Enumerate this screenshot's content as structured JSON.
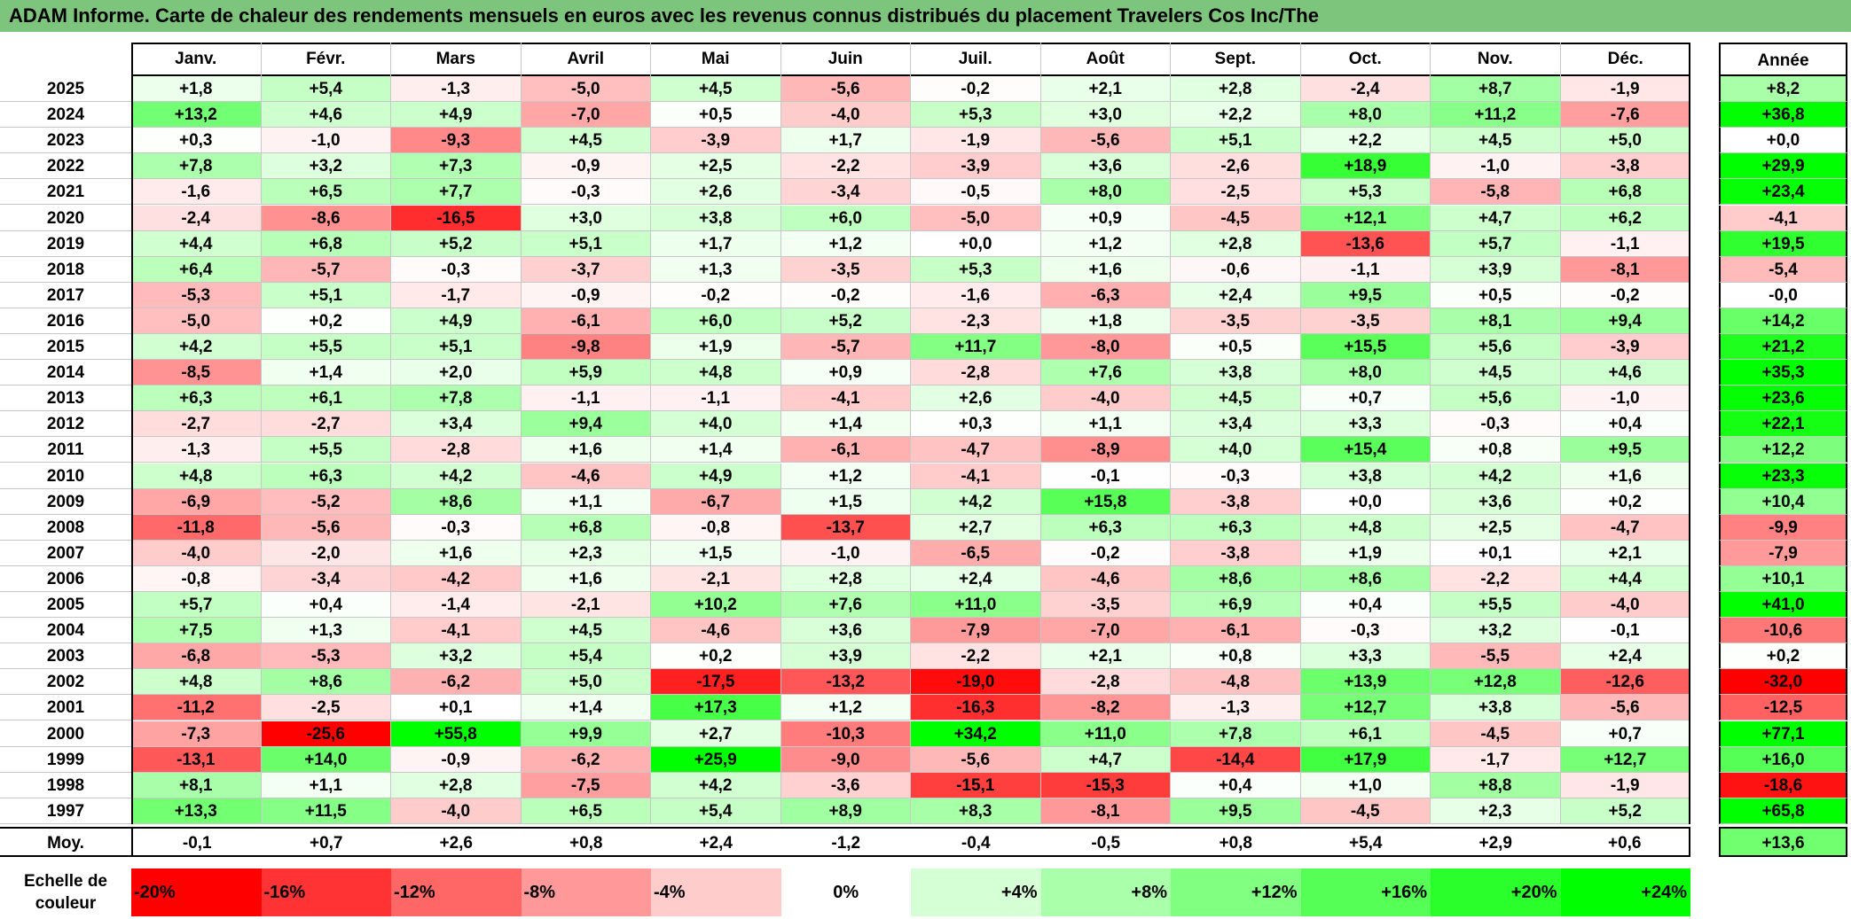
{
  "title": "ADAM Informe. Carte de chaleur des rendements mensuels en euros avec les revenus connus distribués du placement Travelers Cos Inc/The",
  "chart_data": {
    "type": "heatmap",
    "months": [
      "Janv.",
      "Févr.",
      "Mars",
      "Avril",
      "Mai",
      "Juin",
      "Juil.",
      "Août",
      "Sept.",
      "Oct.",
      "Nov.",
      "Déc."
    ],
    "annual_header": "Année",
    "rows": [
      {
        "year": "2025",
        "values": [
          "+1,8",
          "+5,4",
          "-1,3",
          "-5,0",
          "+4,5",
          "-5,6",
          "-0,2",
          "+2,1",
          "+2,8",
          "-2,4",
          "+8,7",
          "-1,9"
        ],
        "annual": "+8,2"
      },
      {
        "year": "2024",
        "values": [
          "+13,2",
          "+4,6",
          "+4,9",
          "-7,0",
          "+0,5",
          "-4,0",
          "+5,3",
          "+3,0",
          "+2,2",
          "+8,0",
          "+11,2",
          "-7,6"
        ],
        "annual": "+36,8"
      },
      {
        "year": "2023",
        "values": [
          "+0,3",
          "-1,0",
          "-9,3",
          "+4,5",
          "-3,9",
          "+1,7",
          "-1,9",
          "-5,6",
          "+5,1",
          "+2,2",
          "+4,5",
          "+5,0"
        ],
        "annual": "+0,0"
      },
      {
        "year": "2022",
        "values": [
          "+7,8",
          "+3,2",
          "+7,3",
          "-0,9",
          "+2,5",
          "-2,2",
          "-3,9",
          "+3,6",
          "-2,6",
          "+18,9",
          "-1,0",
          "-3,8"
        ],
        "annual": "+29,9"
      },
      {
        "year": "2021",
        "values": [
          "-1,6",
          "+6,5",
          "+7,7",
          "-0,3",
          "+2,6",
          "-3,4",
          "-0,5",
          "+8,0",
          "-2,5",
          "+5,3",
          "-5,8",
          "+6,8"
        ],
        "annual": "+23,4"
      },
      {
        "year": "2020",
        "values": [
          "-2,4",
          "-8,6",
          "-16,5",
          "+3,0",
          "+3,8",
          "+6,0",
          "-5,0",
          "+0,9",
          "-4,5",
          "+12,1",
          "+4,7",
          "+6,2"
        ],
        "annual": "-4,1"
      },
      {
        "year": "2019",
        "values": [
          "+4,4",
          "+6,8",
          "+5,2",
          "+5,1",
          "+1,7",
          "+1,2",
          "+0,0",
          "+1,2",
          "+2,8",
          "-13,6",
          "+5,7",
          "-1,1"
        ],
        "annual": "+19,5"
      },
      {
        "year": "2018",
        "values": [
          "+6,4",
          "-5,7",
          "-0,3",
          "-3,7",
          "+1,3",
          "-3,5",
          "+5,3",
          "+1,6",
          "-0,6",
          "-1,1",
          "+3,9",
          "-8,1"
        ],
        "annual": "-5,4"
      },
      {
        "year": "2017",
        "values": [
          "-5,3",
          "+5,1",
          "-1,7",
          "-0,9",
          "-0,2",
          "-0,2",
          "-1,6",
          "-6,3",
          "+2,4",
          "+9,5",
          "+0,5",
          "-0,2"
        ],
        "annual": "-0,0"
      },
      {
        "year": "2016",
        "values": [
          "-5,0",
          "+0,2",
          "+4,9",
          "-6,1",
          "+6,0",
          "+5,2",
          "-2,3",
          "+1,8",
          "-3,5",
          "-3,5",
          "+8,1",
          "+9,4"
        ],
        "annual": "+14,2"
      },
      {
        "year": "2015",
        "values": [
          "+4,2",
          "+5,5",
          "+5,1",
          "-9,8",
          "+1,9",
          "-5,7",
          "+11,7",
          "-8,0",
          "+0,5",
          "+15,5",
          "+5,6",
          "-3,9"
        ],
        "annual": "+21,2"
      },
      {
        "year": "2014",
        "values": [
          "-8,5",
          "+1,4",
          "+2,0",
          "+5,9",
          "+4,8",
          "+0,9",
          "-2,8",
          "+7,6",
          "+3,8",
          "+8,0",
          "+4,5",
          "+4,6"
        ],
        "annual": "+35,3"
      },
      {
        "year": "2013",
        "values": [
          "+6,3",
          "+6,1",
          "+7,8",
          "-1,1",
          "-1,1",
          "-4,1",
          "+2,6",
          "-4,0",
          "+4,5",
          "+0,7",
          "+5,6",
          "-1,0"
        ],
        "annual": "+23,6"
      },
      {
        "year": "2012",
        "values": [
          "-2,7",
          "-2,7",
          "+3,4",
          "+9,4",
          "+4,0",
          "+1,4",
          "+0,3",
          "+1,1",
          "+3,4",
          "+3,3",
          "-0,3",
          "+0,4"
        ],
        "annual": "+22,1"
      },
      {
        "year": "2011",
        "values": [
          "-1,3",
          "+5,5",
          "-2,8",
          "+1,6",
          "+1,4",
          "-6,1",
          "-4,7",
          "-8,9",
          "+4,0",
          "+15,4",
          "+0,8",
          "+9,5"
        ],
        "annual": "+12,2"
      },
      {
        "year": "2010",
        "values": [
          "+4,8",
          "+6,3",
          "+4,2",
          "-4,6",
          "+4,9",
          "+1,2",
          "-4,1",
          "-0,1",
          "-0,3",
          "+3,8",
          "+4,2",
          "+1,6"
        ],
        "annual": "+23,3"
      },
      {
        "year": "2009",
        "values": [
          "-6,9",
          "-5,2",
          "+8,6",
          "+1,1",
          "-6,7",
          "+1,5",
          "+4,2",
          "+15,8",
          "-3,8",
          "+0,0",
          "+3,6",
          "+0,2"
        ],
        "annual": "+10,4"
      },
      {
        "year": "2008",
        "values": [
          "-11,8",
          "-5,6",
          "-0,3",
          "+6,8",
          "-0,8",
          "-13,7",
          "+2,7",
          "+6,3",
          "+6,3",
          "+4,8",
          "+2,5",
          "-4,7"
        ],
        "annual": "-9,9"
      },
      {
        "year": "2007",
        "values": [
          "-4,0",
          "-2,0",
          "+1,6",
          "+2,3",
          "+1,5",
          "-1,0",
          "-6,5",
          "-0,2",
          "-3,8",
          "+1,9",
          "+0,1",
          "+2,1"
        ],
        "annual": "-7,9"
      },
      {
        "year": "2006",
        "values": [
          "-0,8",
          "-3,4",
          "-4,2",
          "+1,6",
          "-2,1",
          "+2,8",
          "+2,4",
          "-4,6",
          "+8,6",
          "+8,6",
          "-2,2",
          "+4,4"
        ],
        "annual": "+10,1"
      },
      {
        "year": "2005",
        "values": [
          "+5,7",
          "+0,4",
          "-1,4",
          "-2,1",
          "+10,2",
          "+7,6",
          "+11,0",
          "-3,5",
          "+6,9",
          "+0,4",
          "+5,5",
          "-4,0"
        ],
        "annual": "+41,0"
      },
      {
        "year": "2004",
        "values": [
          "+7,5",
          "+1,3",
          "-4,1",
          "+4,5",
          "-4,6",
          "+3,6",
          "-7,9",
          "-7,0",
          "-6,1",
          "-0,3",
          "+3,2",
          "-0,1"
        ],
        "annual": "-10,6"
      },
      {
        "year": "2003",
        "values": [
          "-6,8",
          "-5,3",
          "+3,2",
          "+5,4",
          "+0,2",
          "+3,9",
          "-2,2",
          "+2,1",
          "+0,8",
          "+3,3",
          "-5,5",
          "+2,4"
        ],
        "annual": "+0,2"
      },
      {
        "year": "2002",
        "values": [
          "+4,8",
          "+8,6",
          "-6,2",
          "+5,0",
          "-17,5",
          "-13,2",
          "-19,0",
          "-2,8",
          "-4,8",
          "+13,9",
          "+12,8",
          "-12,6"
        ],
        "annual": "-32,0"
      },
      {
        "year": "2001",
        "values": [
          "-11,2",
          "-2,5",
          "+0,1",
          "+1,4",
          "+17,3",
          "+1,2",
          "-16,3",
          "-8,2",
          "-1,3",
          "+12,7",
          "+3,8",
          "-5,6"
        ],
        "annual": "-12,5"
      },
      {
        "year": "2000",
        "values": [
          "-7,3",
          "-25,6",
          "+55,8",
          "+9,9",
          "+2,7",
          "-10,3",
          "+34,2",
          "+11,0",
          "+7,8",
          "+6,1",
          "-4,5",
          "+0,7"
        ],
        "annual": "+77,1"
      },
      {
        "year": "1999",
        "values": [
          "-13,1",
          "+14,0",
          "-0,9",
          "-6,2",
          "+25,9",
          "-9,0",
          "-5,6",
          "+4,7",
          "-14,4",
          "+17,9",
          "-1,7",
          "+12,7"
        ],
        "annual": "+16,0"
      },
      {
        "year": "1998",
        "values": [
          "+8,1",
          "+1,1",
          "+2,8",
          "-7,5",
          "+4,2",
          "-3,6",
          "-15,1",
          "-15,3",
          "+0,4",
          "+1,0",
          "+8,8",
          "-1,9"
        ],
        "annual": "-18,6"
      },
      {
        "year": "1997",
        "values": [
          "+13,3",
          "+11,5",
          "-4,0",
          "+6,5",
          "+5,4",
          "+8,9",
          "+8,3",
          "-8,1",
          "+9,5",
          "-4,5",
          "+2,3",
          "+5,2"
        ],
        "annual": "+65,8"
      }
    ],
    "average": {
      "label": "Moy.",
      "values": [
        "-0,1",
        "+0,7",
        "+2,6",
        "+0,8",
        "+2,4",
        "-1,2",
        "-0,4",
        "-0,5",
        "+0,8",
        "+5,4",
        "+2,9",
        "+0,6"
      ],
      "annual": "+13,6"
    },
    "color_scale": {
      "label_line1": "Echelle de",
      "label_line2": "couleur",
      "stops": [
        {
          "label": "-20%",
          "value": -20
        },
        {
          "label": "-16%",
          "value": -16
        },
        {
          "label": "-12%",
          "value": -12
        },
        {
          "label": "-8%",
          "value": -8
        },
        {
          "label": "-4%",
          "value": -4
        },
        {
          "label": "0%",
          "value": 0
        },
        {
          "label": "+4%",
          "value": 4
        },
        {
          "label": "+8%",
          "value": 8
        },
        {
          "label": "+12%",
          "value": 12
        },
        {
          "label": "+16%",
          "value": 16
        },
        {
          "label": "+20%",
          "value": 20
        },
        {
          "label": "+24%",
          "value": 24
        }
      ],
      "negative_color": "#ff0000",
      "neutral_color": "#ffffff",
      "positive_color": "#00ff00"
    }
  }
}
